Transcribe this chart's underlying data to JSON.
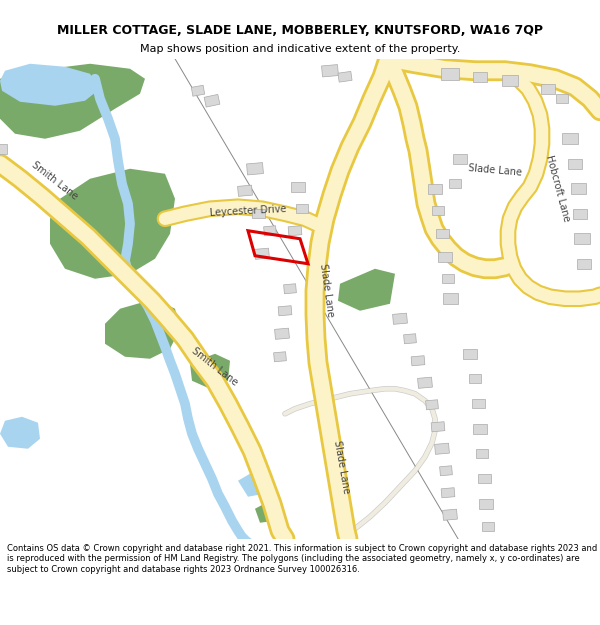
{
  "title": "MILLER COTTAGE, SLADE LANE, MOBBERLEY, KNUTSFORD, WA16 7QP",
  "subtitle": "Map shows position and indicative extent of the property.",
  "footer": "Contains OS data © Crown copyright and database right 2021. This information is subject to Crown copyright and database rights 2023 and is reproduced with the permission of HM Land Registry. The polygons (including the associated geometry, namely x, y co-ordinates) are subject to Crown copyright and database rights 2023 Ordnance Survey 100026316.",
  "bg_color": "#ffffff",
  "road_fill": "#fdf3c8",
  "road_border": "#e8c840",
  "water_color": "#a8d4f0",
  "green_color": "#7aaa6a",
  "building_color": "#d8d8d8",
  "building_edge": "#aaaaaa",
  "plot_color": "#dd0000",
  "minor_road_fill": "#f0ede0",
  "minor_road_border": "#cccccc",
  "title_size": 9,
  "subtitle_size": 8,
  "road_label_size": 7,
  "footer_size": 6
}
